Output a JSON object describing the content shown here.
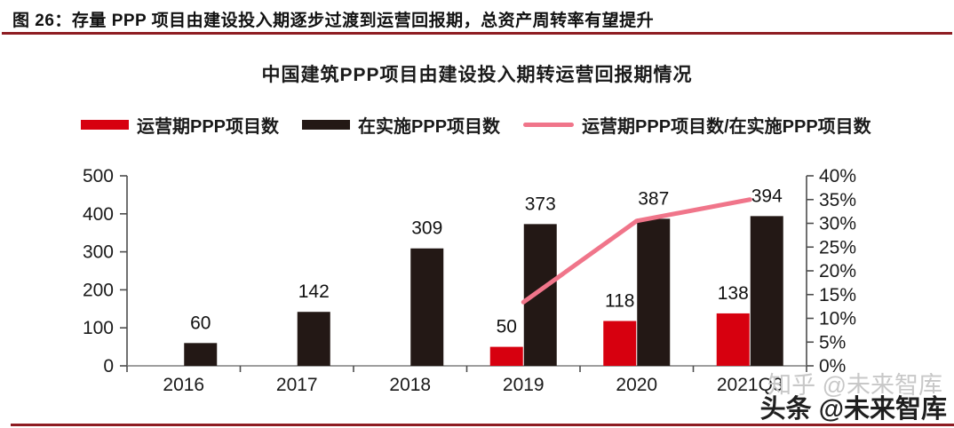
{
  "header": {
    "title": "图 26：存量 PPP 项目由建设投入期逐步过渡到运营回报期，总资产周转率有望提升"
  },
  "watermarks": {
    "light": "知乎 @未来智库",
    "dark": "头条 @未来智库"
  },
  "colors": {
    "rule_maroon": "#8e1c22",
    "bar_red": "#d7000f",
    "bar_dark": "#231815",
    "line_pink": "#f0758a",
    "axis": "#4d4d4d",
    "baseline": "#7f7f7f",
    "watermark_gray": "#c8c8c8"
  },
  "chart_data": {
    "type": "bar",
    "subtype": "grouped bars with secondary-axis line",
    "title": "中国建筑PPP项目由建设投入期转运营回报期情况",
    "categories": [
      "2016",
      "2017",
      "2018",
      "2019",
      "2020",
      "2021Q3"
    ],
    "series": [
      {
        "name": "运营期PPP项目数",
        "type": "bar",
        "color": "#d7000f",
        "axis": "left",
        "values": [
          null,
          null,
          null,
          50,
          118,
          138
        ]
      },
      {
        "name": "在实施PPP项目数",
        "type": "bar",
        "color": "#231815",
        "axis": "left",
        "values": [
          60,
          142,
          309,
          373,
          387,
          394
        ]
      },
      {
        "name": "运营期PPP项目数/在实施PPP项目数",
        "type": "line",
        "color": "#f0758a",
        "axis": "right",
        "values": [
          null,
          null,
          null,
          13.4,
          30.5,
          35.0
        ]
      }
    ],
    "left_axis": {
      "min": 0,
      "max": 500,
      "step": 100,
      "suffix": ""
    },
    "right_axis": {
      "min": 0,
      "max": 40,
      "step": 5,
      "suffix": "%"
    },
    "grid": false,
    "legend_position": "top",
    "data_labels": "bars only"
  }
}
